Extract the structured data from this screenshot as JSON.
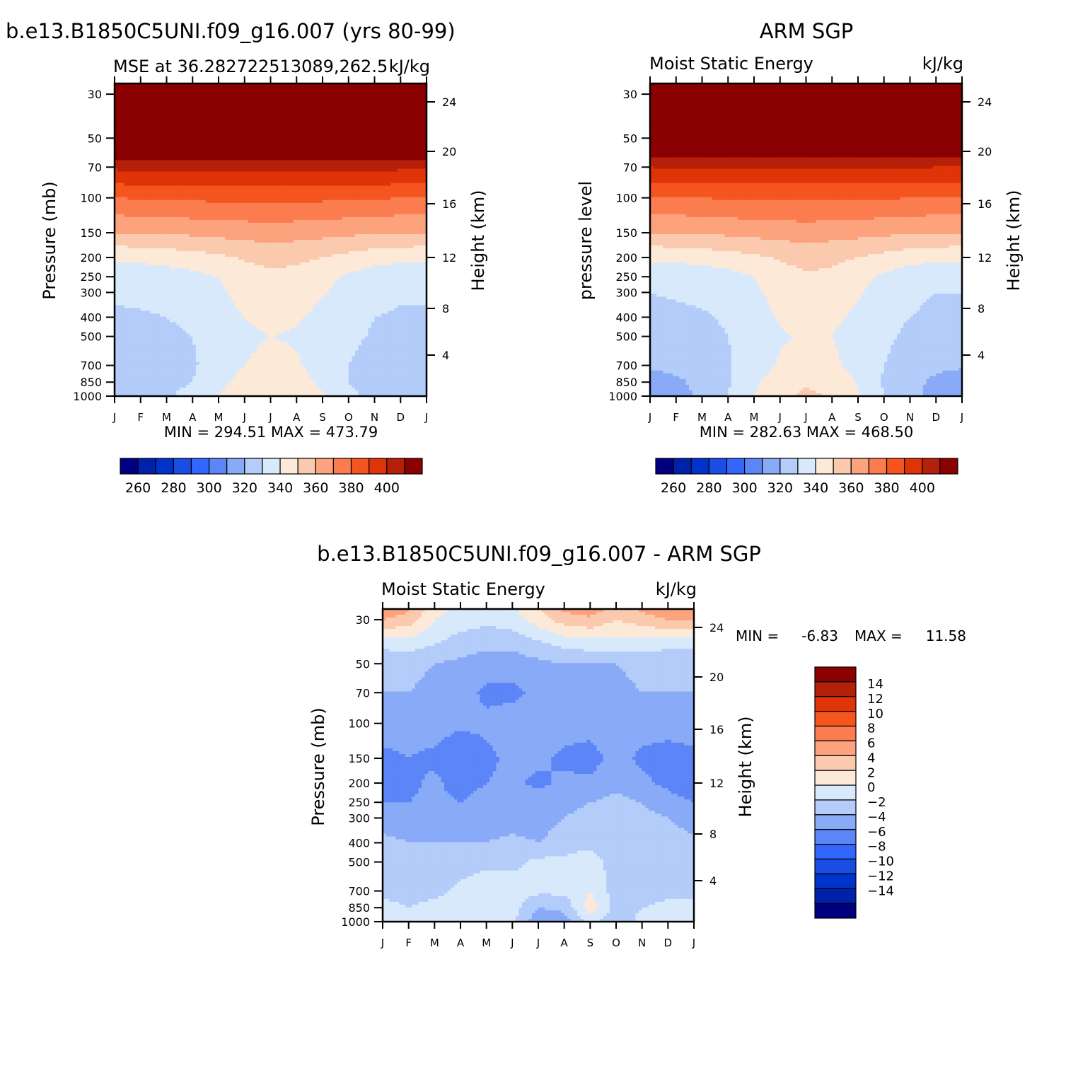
{
  "colors": {
    "mse_levels": [
      "#000080",
      "#0022aa",
      "#0033cc",
      "#1a4de6",
      "#3366ff",
      "#5c85f7",
      "#88aaf7",
      "#b3ccfa",
      "#d9e9fc",
      "#fde9d7",
      "#fbc9ad",
      "#fca37d",
      "#fb7d4f",
      "#f5551f",
      "#e03308",
      "#b5200a",
      "#8b0000"
    ],
    "diff_levels": [
      "#000080",
      "#0022aa",
      "#0033cc",
      "#1a4de6",
      "#3366ff",
      "#5c85f7",
      "#88aaf7",
      "#b3ccfa",
      "#d9e9fc",
      "#fde9d7",
      "#fbc9ad",
      "#fca37d",
      "#fb7d4f",
      "#f5551f",
      "#e03308",
      "#b5200a",
      "#8b0000"
    ]
  },
  "panels": {
    "model": {
      "title": "b.e13.B1850C5UNI.f09_g16.007 (yrs 80-99)",
      "left_subtitle": "MSE at 36.282722513089,262.5",
      "right_subtitle": "kJ/kg",
      "ylabel_left": "Pressure (mb)",
      "ylabel_right": "Height (km)",
      "minmax": "MIN = 294.51 MAX = 473.79"
    },
    "obs": {
      "title": "ARM SGP",
      "left_subtitle": "Moist Static Energy",
      "right_subtitle": "kJ/kg",
      "ylabel_left": "pressure level",
      "ylabel_right": "Height (km)",
      "minmax": "MIN = 282.63 MAX = 468.50"
    },
    "diff": {
      "title": "b.e13.B1850C5UNI.f09_g16.007 - ARM SGP",
      "left_subtitle": "Moist Static Energy",
      "right_subtitle": "kJ/kg",
      "ylabel_left": "Pressure (mb)",
      "ylabel_right": "Height (km)",
      "minmax_min_label": "MIN =",
      "minmax_min_value": "-6.83",
      "minmax_max_label": "MAX =",
      "minmax_max_value": "11.58"
    }
  },
  "chart_data": [
    {
      "type": "heatmap",
      "title": "b.e13.B1850C5UNI.f09_g16.007 (yrs 80-99)",
      "subtitle": "MSE at 36.282722513089,262.5",
      "units": "kJ/kg",
      "x": [
        "J",
        "F",
        "M",
        "A",
        "M",
        "J",
        "J",
        "A",
        "S",
        "O",
        "N",
        "D",
        "J"
      ],
      "y_pressure_ticks": [
        30,
        50,
        70,
        100,
        150,
        200,
        250,
        300,
        400,
        500,
        700,
        850,
        1000
      ],
      "y_height_ticks": [
        24,
        20,
        16,
        12,
        8,
        4
      ],
      "contour_levels": [
        250,
        260,
        270,
        280,
        290,
        300,
        310,
        320,
        330,
        340,
        350,
        360,
        370,
        380,
        390,
        400
      ],
      "colorbar_labels": [
        "260",
        "280",
        "300",
        "320",
        "340",
        "360",
        "380",
        "400"
      ],
      "min": 294.51,
      "max": 473.79,
      "profile": [
        {
          "p": 1000,
          "v": [
            310,
            313,
            318,
            325,
            330,
            337,
            338,
            337,
            331,
            323,
            316,
            311,
            310
          ]
        },
        {
          "p": 850,
          "v": [
            311,
            313,
            316,
            320,
            327,
            334,
            336,
            334,
            328,
            320,
            315,
            312,
            311
          ]
        },
        {
          "p": 700,
          "v": [
            313,
            315,
            317,
            319,
            324,
            330,
            333,
            331,
            326,
            320,
            316,
            314,
            313
          ]
        },
        {
          "p": 500,
          "v": [
            317,
            317,
            318,
            320,
            324,
            328,
            330,
            329,
            326,
            322,
            319,
            318,
            317
          ]
        },
        {
          "p": 400,
          "v": [
            319,
            319,
            320,
            322,
            325,
            330,
            333,
            331,
            327,
            323,
            320,
            319,
            319
          ]
        },
        {
          "p": 300,
          "v": [
            321,
            322,
            323,
            325,
            328,
            334,
            336,
            335,
            331,
            326,
            323,
            321,
            321
          ]
        },
        {
          "p": 250,
          "v": [
            322,
            323,
            325,
            327,
            330,
            336,
            338,
            337,
            333,
            328,
            325,
            323,
            322
          ]
        },
        {
          "p": 200,
          "v": [
            332,
            333,
            334,
            336,
            338,
            341,
            343,
            342,
            340,
            337,
            334,
            333,
            332
          ]
        },
        {
          "p": 150,
          "v": [
            350,
            350,
            351,
            352,
            353,
            354,
            355,
            354,
            353,
            352,
            351,
            350,
            350
          ]
        },
        {
          "p": 100,
          "v": [
            370,
            371,
            371,
            372,
            372,
            372,
            372,
            372,
            372,
            371,
            371,
            370,
            370
          ]
        },
        {
          "p": 70,
          "v": [
            392,
            393,
            393,
            393,
            393,
            393,
            393,
            393,
            393,
            393,
            393,
            392,
            392
          ]
        },
        {
          "p": 50,
          "v": [
            420,
            420,
            420,
            420,
            420,
            420,
            420,
            420,
            420,
            420,
            420,
            420,
            420
          ]
        },
        {
          "p": 30,
          "v": [
            460,
            460,
            460,
            460,
            460,
            460,
            460,
            460,
            460,
            460,
            460,
            460,
            460
          ]
        }
      ]
    },
    {
      "type": "heatmap",
      "title": "ARM SGP",
      "subtitle": "Moist Static Energy",
      "units": "kJ/kg",
      "x": [
        "J",
        "F",
        "M",
        "A",
        "M",
        "J",
        "J",
        "A",
        "S",
        "O",
        "N",
        "D",
        "J"
      ],
      "y_pressure_ticks": [
        30,
        50,
        70,
        100,
        150,
        200,
        250,
        300,
        400,
        500,
        700,
        850,
        1000
      ],
      "y_height_ticks": [
        24,
        20,
        16,
        12,
        8,
        4
      ],
      "contour_levels": [
        250,
        260,
        270,
        280,
        290,
        300,
        310,
        320,
        330,
        340,
        350,
        360,
        370,
        380,
        390,
        400
      ],
      "colorbar_labels": [
        "260",
        "280",
        "300",
        "320",
        "340",
        "360",
        "380",
        "400"
      ],
      "min": 282.63,
      "max": 468.5,
      "profile": [
        {
          "p": 1000,
          "v": [
            303,
            306,
            312,
            320,
            330,
            338,
            342,
            339,
            331,
            320,
            313,
            306,
            303
          ]
        },
        {
          "p": 850,
          "v": [
            306,
            308,
            313,
            319,
            328,
            336,
            339,
            336,
            329,
            319,
            313,
            308,
            306
          ]
        },
        {
          "p": 700,
          "v": [
            311,
            313,
            316,
            319,
            325,
            331,
            334,
            332,
            327,
            320,
            315,
            312,
            311
          ]
        },
        {
          "p": 500,
          "v": [
            316,
            316,
            318,
            320,
            324,
            329,
            331,
            330,
            326,
            322,
            318,
            317,
            316
          ]
        },
        {
          "p": 400,
          "v": [
            318,
            318,
            319,
            321,
            325,
            331,
            334,
            332,
            328,
            323,
            320,
            318,
            318
          ]
        },
        {
          "p": 300,
          "v": [
            320,
            321,
            322,
            324,
            328,
            334,
            337,
            336,
            331,
            326,
            322,
            320,
            320
          ]
        },
        {
          "p": 250,
          "v": [
            322,
            323,
            324,
            326,
            330,
            336,
            339,
            338,
            333,
            328,
            324,
            322,
            322
          ]
        },
        {
          "p": 200,
          "v": [
            332,
            333,
            334,
            336,
            338,
            341,
            343,
            342,
            340,
            337,
            334,
            333,
            332
          ]
        },
        {
          "p": 150,
          "v": [
            350,
            350,
            351,
            352,
            353,
            354,
            355,
            354,
            353,
            352,
            351,
            350,
            350
          ]
        },
        {
          "p": 100,
          "v": [
            370,
            370,
            370,
            371,
            371,
            371,
            371,
            371,
            371,
            371,
            370,
            370,
            370
          ]
        },
        {
          "p": 70,
          "v": [
            390,
            391,
            391,
            391,
            391,
            391,
            391,
            391,
            391,
            391,
            391,
            390,
            390
          ]
        },
        {
          "p": 50,
          "v": [
            420,
            420,
            420,
            420,
            420,
            420,
            420,
            420,
            420,
            420,
            420,
            420,
            420
          ]
        },
        {
          "p": 30,
          "v": [
            460,
            460,
            460,
            460,
            460,
            460,
            460,
            460,
            460,
            460,
            460,
            460,
            460
          ]
        }
      ]
    },
    {
      "type": "heatmap",
      "title": "b.e13.B1850C5UNI.f09_g16.007 - ARM SGP",
      "subtitle": "Moist Static Energy",
      "units": "kJ/kg",
      "x": [
        "J",
        "F",
        "M",
        "A",
        "M",
        "J",
        "J",
        "A",
        "S",
        "O",
        "N",
        "D",
        "J"
      ],
      "y_pressure_ticks": [
        30,
        50,
        70,
        100,
        150,
        200,
        250,
        300,
        400,
        500,
        700,
        850,
        1000
      ],
      "y_height_ticks": [
        24,
        20,
        16,
        12,
        8,
        4
      ],
      "contour_levels": [
        -14,
        -12,
        -10,
        -8,
        -6,
        -4,
        -2,
        0,
        2,
        4,
        6,
        8,
        10,
        12,
        14
      ],
      "colorbar_labels": [
        "14",
        "12",
        "10",
        "8",
        "6",
        "4",
        "2",
        "0",
        "-2",
        "-4",
        "-6",
        "-8",
        "-10",
        "-12",
        "-14"
      ],
      "min": -6.83,
      "max": 11.58,
      "profile": [
        {
          "p": 1000,
          "v": [
            1,
            1,
            0.5,
            0.5,
            0.5,
            0.5,
            -3.5,
            -3,
            0.5,
            -1,
            0.5,
            0.5,
            1
          ]
        },
        {
          "p": 850,
          "v": [
            0.5,
            0,
            0.5,
            0.5,
            1,
            1,
            -2,
            -1.5,
            3,
            -1,
            0,
            0.5,
            0.5
          ]
        },
        {
          "p": 700,
          "v": [
            -0.5,
            -0.5,
            -0.5,
            0.5,
            1.5,
            1,
            0.5,
            0.5,
            2,
            -1,
            -1,
            -0.5,
            -0.5
          ]
        },
        {
          "p": 500,
          "v": [
            -1,
            -1,
            -1.5,
            -1,
            -0.5,
            -0.5,
            0.5,
            0.5,
            1,
            -1,
            -1,
            -1,
            -1
          ]
        },
        {
          "p": 400,
          "v": [
            -1.5,
            -2,
            -2,
            -2,
            -2,
            -1.5,
            -2,
            -1,
            -0.5,
            -1,
            -1,
            -1,
            -1.5
          ]
        },
        {
          "p": 300,
          "v": [
            -3,
            -3,
            -3,
            -3.5,
            -3,
            -3,
            -3,
            -2,
            -1.5,
            -1.5,
            -1.5,
            -2,
            -3
          ]
        },
        {
          "p": 250,
          "v": [
            -4,
            -4,
            -3.5,
            -4,
            -3,
            -3,
            -3,
            -2.5,
            -2,
            -1.5,
            -2,
            -3,
            -4
          ]
        },
        {
          "p": 200,
          "v": [
            -6,
            -4.5,
            -3.5,
            -5,
            -4,
            -3.5,
            -4.5,
            -3.5,
            -3.5,
            -2.5,
            -3.5,
            -4.5,
            -6
          ]
        },
        {
          "p": 150,
          "v": [
            -4.5,
            -4,
            -4.5,
            -6,
            -4.5,
            -3.5,
            -3.5,
            -4.5,
            -5,
            -3,
            -4.5,
            -5,
            -4.5
          ]
        },
        {
          "p": 100,
          "v": [
            -3,
            -3,
            -3,
            -3.5,
            -3.5,
            -3,
            -3,
            -3,
            -3,
            -2.5,
            -3,
            -3,
            -3
          ]
        },
        {
          "p": 70,
          "v": [
            -2,
            -2,
            -2.5,
            -3,
            -4.5,
            -4.5,
            -3.5,
            -2.5,
            -2.5,
            -2.5,
            -2,
            -2,
            -2
          ]
        },
        {
          "p": 50,
          "v": [
            -1.5,
            -1.5,
            -2,
            -2.5,
            -3,
            -3,
            -2.5,
            -2,
            -2,
            -2,
            -1.5,
            -1.5,
            -1.5
          ]
        },
        {
          "p": 40,
          "v": [
            0.5,
            1,
            0,
            -1,
            -1.5,
            -1.5,
            -0.5,
            0.5,
            1,
            1,
            1,
            0.5,
            0.5
          ]
        },
        {
          "p": 30,
          "v": [
            6,
            5,
            2,
            1,
            0.5,
            1,
            3,
            5,
            5.5,
            4,
            5,
            6,
            6
          ]
        },
        {
          "p": 25,
          "v": [
            8,
            7,
            3,
            1.5,
            1,
            2,
            4,
            7,
            8,
            6,
            7,
            8,
            8
          ]
        }
      ]
    }
  ]
}
